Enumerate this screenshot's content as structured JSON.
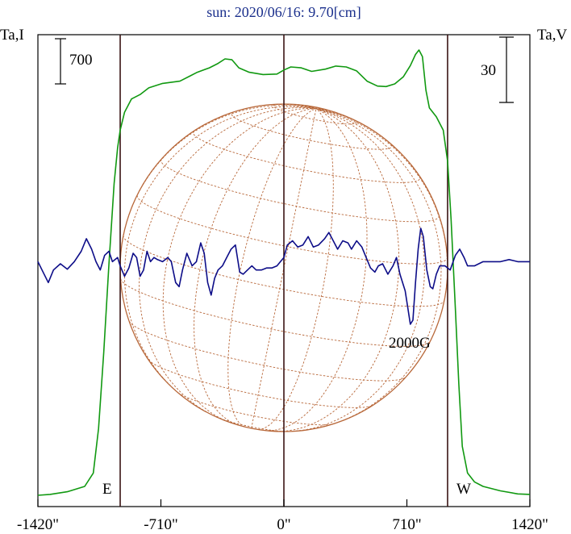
{
  "chart_data": {
    "type": "line",
    "title": "sun: 2020/06/16: 9.70[cm]",
    "left_axis_label": "Ta,I",
    "right_axis_label": "Ta,V",
    "scale_bar_left": "700",
    "scale_bar_right": "30",
    "field_annotation": "2000G",
    "east_label": "E",
    "west_label": "W",
    "x_ticks": [
      {
        "value": -1420,
        "label": "-1420\""
      },
      {
        "value": -710,
        "label": "-710\""
      },
      {
        "value": 0,
        "label": "0\""
      },
      {
        "value": 710,
        "label": "710\""
      },
      {
        "value": 1420,
        "label": "1420\""
      }
    ],
    "xlim": [
      -1420,
      1420
    ],
    "limb_markers": [
      -945,
      0,
      945
    ],
    "grid": false,
    "colors": {
      "intensity": "#119911",
      "polarization": "#0d0d88",
      "sun_disk": "#b8683a",
      "limb_lines": "#3a1414",
      "title": "#1a2f8c"
    },
    "series": [
      {
        "key": "intensity",
        "units": "relative",
        "points": [
          [
            -1420,
            0.0
          ],
          [
            -1350,
            0.2
          ],
          [
            -1250,
            0.8
          ],
          [
            -1150,
            2.0
          ],
          [
            -1100,
            5.0
          ],
          [
            -1070,
            15.0
          ],
          [
            -1040,
            32.0
          ],
          [
            -1010,
            52.0
          ],
          [
            -980,
            70.0
          ],
          [
            -960,
            78.0
          ],
          [
            -945,
            82.0
          ],
          [
            -920,
            86.0
          ],
          [
            -880,
            89.0
          ],
          [
            -830,
            90.0
          ],
          [
            -780,
            91.5
          ],
          [
            -700,
            92.5
          ],
          [
            -600,
            93.0
          ],
          [
            -540,
            94.2
          ],
          [
            -500,
            95.0
          ],
          [
            -430,
            96.0
          ],
          [
            -380,
            97.0
          ],
          [
            -340,
            98.0
          ],
          [
            -300,
            97.8
          ],
          [
            -260,
            96.0
          ],
          [
            -200,
            95.0
          ],
          [
            -120,
            94.5
          ],
          [
            -40,
            94.6
          ],
          [
            0,
            95.5
          ],
          [
            40,
            96.2
          ],
          [
            100,
            96.0
          ],
          [
            160,
            95.2
          ],
          [
            240,
            95.7
          ],
          [
            300,
            96.4
          ],
          [
            360,
            96.2
          ],
          [
            420,
            95.3
          ],
          [
            480,
            93.0
          ],
          [
            540,
            91.9
          ],
          [
            590,
            91.8
          ],
          [
            640,
            92.4
          ],
          [
            690,
            94.0
          ],
          [
            730,
            96.5
          ],
          [
            760,
            99.0
          ],
          [
            780,
            100.0
          ],
          [
            800,
            98.5
          ],
          [
            820,
            91.0
          ],
          [
            840,
            87.0
          ],
          [
            880,
            85.0
          ],
          [
            920,
            82.0
          ],
          [
            945,
            75.0
          ],
          [
            965,
            62.0
          ],
          [
            990,
            42.0
          ],
          [
            1010,
            25.0
          ],
          [
            1030,
            11.0
          ],
          [
            1060,
            5.0
          ],
          [
            1100,
            3.0
          ],
          [
            1150,
            2.0
          ],
          [
            1250,
            1.0
          ],
          [
            1350,
            0.3
          ],
          [
            1420,
            0.2
          ]
        ]
      },
      {
        "key": "polarization",
        "units": "relative",
        "points": [
          [
            -1420,
            0.0
          ],
          [
            -1390,
            -2.5
          ],
          [
            -1360,
            -5.0
          ],
          [
            -1330,
            -2.0
          ],
          [
            -1290,
            -0.5
          ],
          [
            -1250,
            -1.8
          ],
          [
            -1210,
            0.0
          ],
          [
            -1170,
            2.5
          ],
          [
            -1140,
            5.5
          ],
          [
            -1110,
            3.0
          ],
          [
            -1085,
            0.0
          ],
          [
            -1060,
            -2.0
          ],
          [
            -1035,
            1.5
          ],
          [
            -1010,
            2.5
          ],
          [
            -990,
            0.0
          ],
          [
            -960,
            1.0
          ],
          [
            -945,
            -1.0
          ],
          [
            -920,
            -3.5
          ],
          [
            -895,
            -1.5
          ],
          [
            -870,
            2.0
          ],
          [
            -850,
            1.0
          ],
          [
            -830,
            -3.5
          ],
          [
            -810,
            -2.0
          ],
          [
            -790,
            2.5
          ],
          [
            -770,
            0.0
          ],
          [
            -750,
            1.0
          ],
          [
            -730,
            0.5
          ],
          [
            -700,
            0.0
          ],
          [
            -670,
            1.0
          ],
          [
            -650,
            0.0
          ],
          [
            -625,
            -5.0
          ],
          [
            -605,
            -6.0
          ],
          [
            -585,
            -2.0
          ],
          [
            -560,
            2.0
          ],
          [
            -530,
            -1.0
          ],
          [
            -505,
            0.0
          ],
          [
            -480,
            4.5
          ],
          [
            -460,
            2.0
          ],
          [
            -440,
            -5.0
          ],
          [
            -420,
            -8.0
          ],
          [
            -400,
            -4.0
          ],
          [
            -380,
            -2.0
          ],
          [
            -355,
            -1.0
          ],
          [
            -330,
            1.0
          ],
          [
            -305,
            3.0
          ],
          [
            -280,
            4.0
          ],
          [
            -255,
            -2.5
          ],
          [
            -235,
            -3.0
          ],
          [
            -210,
            -2.0
          ],
          [
            -185,
            -1.0
          ],
          [
            -160,
            -2.0
          ],
          [
            -130,
            -2.0
          ],
          [
            -100,
            -1.5
          ],
          [
            -70,
            -1.5
          ],
          [
            -40,
            -1.0
          ],
          [
            -20,
            0.0
          ],
          [
            0,
            1.0
          ],
          [
            20,
            4.0
          ],
          [
            50,
            5.0
          ],
          [
            80,
            3.5
          ],
          [
            110,
            4.0
          ],
          [
            140,
            6.0
          ],
          [
            170,
            3.5
          ],
          [
            200,
            4.0
          ],
          [
            235,
            5.5
          ],
          [
            260,
            7.0
          ],
          [
            285,
            5.0
          ],
          [
            310,
            3.0
          ],
          [
            340,
            5.0
          ],
          [
            370,
            4.5
          ],
          [
            390,
            3.0
          ],
          [
            420,
            5.0
          ],
          [
            450,
            3.5
          ],
          [
            475,
            1.0
          ],
          [
            500,
            -1.5
          ],
          [
            525,
            -2.5
          ],
          [
            545,
            -1.0
          ],
          [
            570,
            -0.5
          ],
          [
            600,
            -3.0
          ],
          [
            630,
            -1.0
          ],
          [
            650,
            1.0
          ],
          [
            670,
            -3.0
          ],
          [
            700,
            -7.0
          ],
          [
            730,
            -15.0
          ],
          [
            745,
            -14.0
          ],
          [
            760,
            -5.0
          ],
          [
            775,
            3.0
          ],
          [
            790,
            8.0
          ],
          [
            805,
            6.0
          ],
          [
            825,
            -2.0
          ],
          [
            845,
            -6.0
          ],
          [
            860,
            -6.5
          ],
          [
            880,
            -3.0
          ],
          [
            900,
            -1.0
          ],
          [
            930,
            -1.0
          ],
          [
            960,
            -2.0
          ],
          [
            990,
            1.5
          ],
          [
            1015,
            3.0
          ],
          [
            1040,
            1.0
          ],
          [
            1060,
            -1.0
          ],
          [
            1100,
            -1.0
          ],
          [
            1150,
            0.0
          ],
          [
            1200,
            0.0
          ],
          [
            1250,
            0.0
          ],
          [
            1300,
            0.5
          ],
          [
            1350,
            0.0
          ],
          [
            1420,
            0.0
          ]
        ]
      }
    ]
  }
}
